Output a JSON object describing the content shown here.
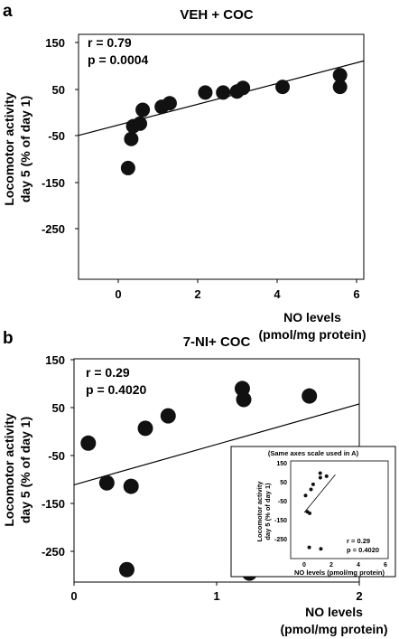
{
  "panels": [
    {
      "letter": "a",
      "title": "VEH + COC",
      "r_text": "r = 0.79",
      "p_text": "p = 0.0004",
      "ylabel_line1": "Locomotor activity",
      "ylabel_line2": "day 5 (% of day 1)",
      "xlabel_line1": "NO levels",
      "xlabel_line2": "(pmol/mg protein)"
    },
    {
      "letter": "b",
      "title": "7-NI+ COC",
      "r_text": "r = 0.29",
      "p_text": "p = 0.4020",
      "ylabel_line1": "Locomotor activity",
      "ylabel_line2": "day 5 (% of day 1)",
      "xlabel_line1": "NO levels",
      "xlabel_line2": "(pmol/mg protein)",
      "inset": {
        "title": "(Same axes scale used in A)",
        "ylabel_line1": "Locomotor activity",
        "ylabel_line2": "day 5 (% of day 1)",
        "xlabel": "NO levels (pmol/mg protein)",
        "r_text": "r = 0.29",
        "p_text": "p = 0.4020"
      }
    }
  ],
  "chart_data": [
    {
      "type": "scatter",
      "title": "VEH + COC",
      "xlabel": "NO levels (pmol/mg protein)",
      "ylabel": "Locomotor activity day 5 (% of day 1)",
      "xlim": [
        -1,
        6.2
      ],
      "ylim": [
        -330,
        150
      ],
      "xticks": [
        0,
        2,
        4,
        6
      ],
      "yticks": [
        150,
        50,
        -50,
        -150,
        -250
      ],
      "points": [
        {
          "x": 0.25,
          "y": -112
        },
        {
          "x": 0.33,
          "y": -55
        },
        {
          "x": 0.38,
          "y": -30
        },
        {
          "x": 0.55,
          "y": -25
        },
        {
          "x": 0.62,
          "y": 2
        },
        {
          "x": 1.1,
          "y": 8
        },
        {
          "x": 1.3,
          "y": 15
        },
        {
          "x": 2.2,
          "y": 36
        },
        {
          "x": 2.65,
          "y": 36
        },
        {
          "x": 3.0,
          "y": 38
        },
        {
          "x": 3.15,
          "y": 45
        },
        {
          "x": 4.15,
          "y": 47
        },
        {
          "x": 5.6,
          "y": 47
        },
        {
          "x": 5.6,
          "y": 70
        }
      ],
      "fit_line": {
        "x": [
          -1,
          6.2
        ],
        "y": [
          -48,
          98
        ]
      },
      "annotations": [
        "r = 0.79",
        "p = 0.0004"
      ]
    },
    {
      "type": "scatter",
      "title": "7-NI+ COC",
      "xlabel": "NO levels (pmol/mg protein)",
      "ylabel": "Locomotor activity day 5 (% of day 1)",
      "xlim": [
        0,
        2
      ],
      "ylim": [
        -300,
        150
      ],
      "xticks": [
        0,
        1,
        2
      ],
      "yticks": [
        150,
        50,
        -50,
        -150,
        -250
      ],
      "points": [
        {
          "x": 0.1,
          "y": -20
        },
        {
          "x": 0.23,
          "y": -100
        },
        {
          "x": 0.37,
          "y": -275
        },
        {
          "x": 0.4,
          "y": -107
        },
        {
          "x": 0.5,
          "y": 10
        },
        {
          "x": 0.66,
          "y": 35
        },
        {
          "x": 1.18,
          "y": 90
        },
        {
          "x": 1.19,
          "y": 68
        },
        {
          "x": 1.23,
          "y": -282
        },
        {
          "x": 1.65,
          "y": 75
        }
      ],
      "fit_line": {
        "x": [
          0,
          2
        ],
        "y": [
          -104,
          59
        ]
      },
      "annotations": [
        "r = 0.29",
        "p = 0.4020"
      ]
    },
    {
      "type": "scatter",
      "title": "(Same axes scale used in A)",
      "xlabel": "NO levels (pmol/mg protein)",
      "ylabel": "Locomotor activity day 5 (% of day 1)",
      "xlim": [
        -1,
        6.2
      ],
      "ylim": [
        -330,
        150
      ],
      "xticks": [
        0,
        2,
        4,
        6
      ],
      "yticks": [
        150,
        50,
        -50,
        -150,
        -250
      ],
      "points": [
        {
          "x": 0.1,
          "y": -20
        },
        {
          "x": 0.23,
          "y": -100
        },
        {
          "x": 0.37,
          "y": -275
        },
        {
          "x": 0.4,
          "y": -107
        },
        {
          "x": 0.5,
          "y": 10
        },
        {
          "x": 0.66,
          "y": 35
        },
        {
          "x": 1.18,
          "y": 90
        },
        {
          "x": 1.19,
          "y": 68
        },
        {
          "x": 1.23,
          "y": -282
        },
        {
          "x": 1.65,
          "y": 75
        }
      ],
      "fit_line": {
        "x": [
          0,
          2.3
        ],
        "y": [
          -104,
          83
        ]
      },
      "annotations": [
        "r = 0.29",
        "p = 0.4020"
      ]
    }
  ]
}
